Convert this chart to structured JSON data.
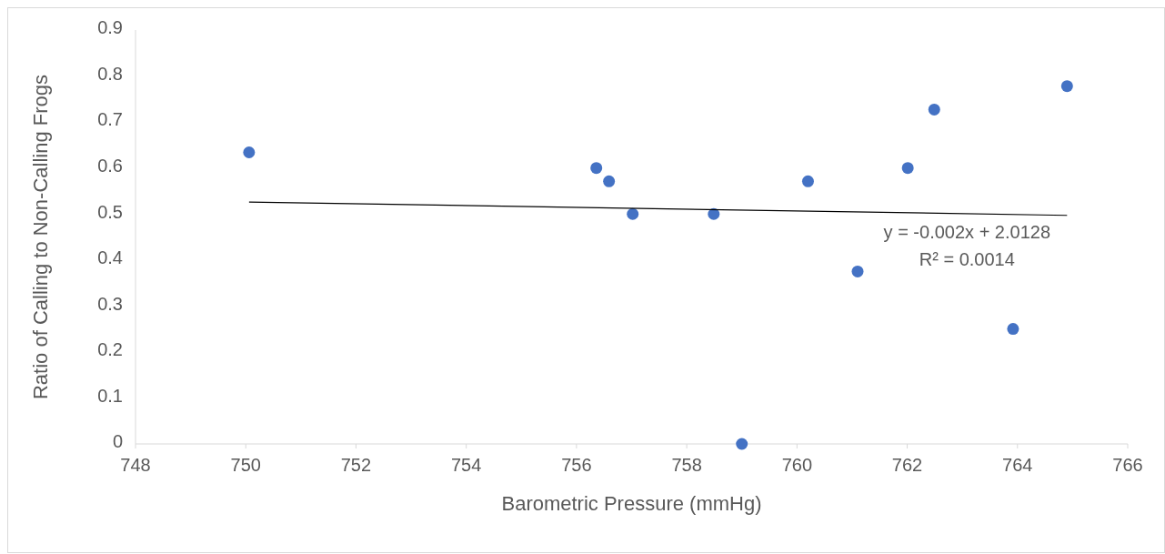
{
  "chart_data": {
    "type": "scatter",
    "xlabel": "Barometric Pressure (mmHg)",
    "ylabel": "Ratio of Calling to Non-Calling Frogs",
    "xlim": [
      748,
      766
    ],
    "xticks": [
      748,
      750,
      752,
      754,
      756,
      758,
      760,
      762,
      764,
      766
    ],
    "ylim": [
      0,
      0.9
    ],
    "yticks": [
      0,
      0.1,
      0.2,
      0.3,
      0.4,
      0.5,
      0.6,
      0.7,
      0.8,
      0.9
    ],
    "grid": false,
    "marker": "circle",
    "series": [
      {
        "type": "scatter",
        "color": "#4472c4",
        "x": [
          750.06,
          756.36,
          756.59,
          757.02,
          758.49,
          759.0,
          760.2,
          761.1,
          762.01,
          762.49,
          763.92,
          764.9
        ],
        "values": [
          0.634,
          0.6,
          0.571,
          0.5,
          0.5,
          0,
          0.571,
          0.375,
          0.6,
          0.727,
          0.25,
          0.778
        ]
      },
      {
        "type": "line",
        "color": "#000000",
        "line_style": "solid",
        "marker": "none",
        "x": [
          750.06,
          764.9
        ],
        "values": [
          0.526,
          0.497
        ]
      }
    ],
    "annotations": [
      "y = -0.002x + 2.0128",
      "R² = 0.0014"
    ]
  }
}
